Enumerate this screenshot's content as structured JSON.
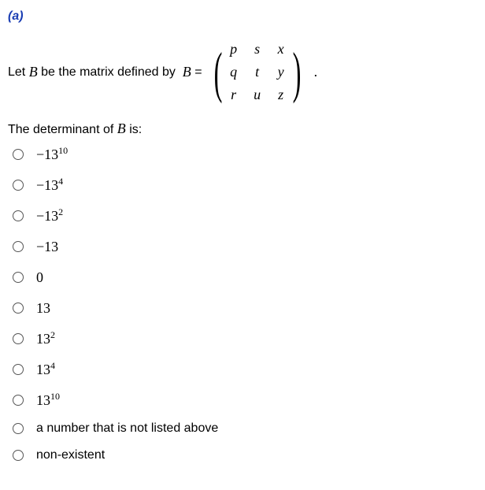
{
  "part_label": "(a)",
  "stem": {
    "pre": "Let ",
    "var1": "B",
    "mid": " be the matrix defined by  ",
    "var2": "B",
    "eq": " ="
  },
  "matrix": {
    "r1c1": "p",
    "r1c2": "s",
    "r1c3": "x",
    "r2c1": "q",
    "r2c2": "t",
    "r2c3": "y",
    "r3c1": "r",
    "r3c2": "u",
    "r3c3": "z"
  },
  "period": ".",
  "subq": {
    "pre": "The determinant of ",
    "var": "B",
    "post": " is:"
  },
  "options": {
    "o1": {
      "base": "−13",
      "sup": "10"
    },
    "o2": {
      "base": "−13",
      "sup": "4"
    },
    "o3": {
      "base": "−13",
      "sup": "2"
    },
    "o4": {
      "base": "−13",
      "sup": ""
    },
    "o5": {
      "base": "0",
      "sup": ""
    },
    "o6": {
      "base": "13",
      "sup": ""
    },
    "o7": {
      "base": "13",
      "sup": "2"
    },
    "o8": {
      "base": "13",
      "sup": "4"
    },
    "o9": {
      "base": "13",
      "sup": "10"
    },
    "o10_text": "a number that is not listed above",
    "o11_text": "non-existent"
  }
}
